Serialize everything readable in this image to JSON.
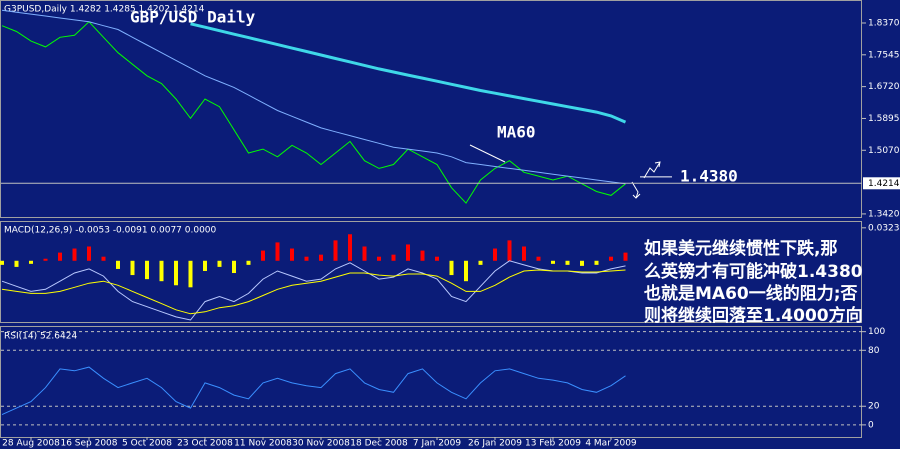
{
  "chart_data": [
    {
      "type": "line",
      "title": "GBP/USD Daily",
      "subtitle": "G3PUSD,Daily  1.4282 1.4285 1.4202 1.4214",
      "ylim": [
        1.334,
        1.894
      ],
      "yticks": [
        {
          "value": 1.837,
          "label": "1.8370"
        },
        1.7545,
        {
          "value": 1.672,
          "label": "1.6720"
        },
        1.5895,
        {
          "value": 1.507,
          "label": "1.5070"
        },
        {
          "value": 1.342,
          "label": "1.3420"
        }
      ],
      "last_price": 1.4214,
      "resistance": {
        "value": 1.438,
        "label": "1.4380"
      },
      "annotations": [
        "MA60",
        "如果美元继续惯性下跌,那",
        "么英镑才有可能冲破1.4380",
        "也就是MA60一线的阻力;否",
        "则将继续回落至1.4000方向"
      ],
      "series": [
        {
          "color": "#00ff00",
          "values": [
            1.83,
            1.815,
            1.79,
            1.775,
            1.8,
            1.805,
            1.84,
            1.8,
            1.76,
            1.73,
            1.7,
            1.68,
            1.64,
            1.59,
            1.64,
            1.62,
            1.56,
            1.5,
            1.51,
            1.49,
            1.52,
            1.5,
            1.47,
            1.5,
            1.53,
            1.48,
            1.46,
            1.47,
            1.51,
            1.49,
            1.47,
            1.41,
            1.37,
            1.43,
            1.46,
            1.48,
            1.45,
            1.44,
            1.43,
            1.44,
            1.42,
            1.4,
            1.39,
            1.42
          ]
        },
        {
          "color": "#7fb0ff",
          "values": [
            1.87,
            1.865,
            1.86,
            1.855,
            1.85,
            1.845,
            1.84,
            1.83,
            1.82,
            1.8,
            1.78,
            1.76,
            1.74,
            1.72,
            1.7,
            1.685,
            1.67,
            1.65,
            1.63,
            1.61,
            1.595,
            1.58,
            1.565,
            1.555,
            1.545,
            1.535,
            1.525,
            1.515,
            1.51,
            1.505,
            1.5,
            1.49,
            1.475,
            1.47,
            1.465,
            1.46,
            1.455,
            1.45,
            1.445,
            1.44,
            1.435,
            1.43,
            1.425,
            1.42
          ]
        },
        {
          "color": "#3fd8e8",
          "values": [
            null,
            null,
            null,
            null,
            null,
            null,
            null,
            null,
            null,
            null,
            null,
            null,
            null,
            1.835,
            1.826,
            1.817,
            1.808,
            1.799,
            1.79,
            1.781,
            1.772,
            1.763,
            1.754,
            1.745,
            1.736,
            1.727,
            1.718,
            1.71,
            1.702,
            1.694,
            1.686,
            1.678,
            1.67,
            1.662,
            1.655,
            1.648,
            1.641,
            1.634,
            1.627,
            1.62,
            1.613,
            1.606,
            1.596,
            1.58
          ]
        }
      ]
    },
    {
      "type": "bar",
      "title": "MACD(12,26,9) -0.0053 -0.0091 0.0077 0.0000",
      "ylim": [
        -0.06,
        0.038
      ],
      "yticks": [
        0.0323
      ],
      "up_color": "#ff0000",
      "down_color": "#ffff00",
      "values": [
        -0.004,
        -0.006,
        -0.003,
        0.002,
        0.008,
        0.012,
        0.014,
        0.004,
        -0.008,
        -0.014,
        -0.018,
        -0.02,
        -0.024,
        -0.026,
        -0.01,
        -0.006,
        -0.012,
        -0.004,
        0.01,
        0.018,
        0.012,
        0.004,
        0.006,
        0.02,
        0.026,
        0.014,
        0.004,
        0.006,
        0.016,
        0.01,
        0.004,
        -0.014,
        -0.02,
        -0.004,
        0.012,
        0.02,
        0.014,
        0.004,
        -0.003,
        -0.004,
        -0.005,
        -0.004,
        0.004,
        0.008
      ],
      "series": [
        {
          "color": "#b8c8ff",
          "values": [
            -0.02,
            -0.025,
            -0.03,
            -0.028,
            -0.02,
            -0.012,
            -0.008,
            -0.015,
            -0.03,
            -0.04,
            -0.045,
            -0.05,
            -0.055,
            -0.058,
            -0.04,
            -0.035,
            -0.04,
            -0.032,
            -0.018,
            -0.01,
            -0.015,
            -0.02,
            -0.018,
            -0.008,
            -0.002,
            -0.01,
            -0.018,
            -0.016,
            -0.008,
            -0.012,
            -0.018,
            -0.035,
            -0.04,
            -0.025,
            -0.01,
            0.0,
            -0.004,
            -0.008,
            -0.01,
            -0.01,
            -0.012,
            -0.012,
            -0.008,
            -0.005
          ]
        },
        {
          "color": "#ffff00",
          "values": [
            -0.028,
            -0.03,
            -0.032,
            -0.032,
            -0.03,
            -0.026,
            -0.022,
            -0.02,
            -0.024,
            -0.03,
            -0.036,
            -0.042,
            -0.048,
            -0.052,
            -0.05,
            -0.046,
            -0.044,
            -0.04,
            -0.034,
            -0.028,
            -0.024,
            -0.022,
            -0.02,
            -0.016,
            -0.012,
            -0.012,
            -0.014,
            -0.015,
            -0.013,
            -0.013,
            -0.015,
            -0.022,
            -0.03,
            -0.03,
            -0.024,
            -0.016,
            -0.01,
            -0.009,
            -0.01,
            -0.01,
            -0.011,
            -0.011,
            -0.01,
            -0.009
          ]
        }
      ]
    },
    {
      "type": "line",
      "title": "RSI(14) 52.6424",
      "categories": [
        null,
        null,
        "28 Aug 2008",
        null,
        null,
        null,
        "16 Sep 2008",
        null,
        null,
        null,
        "5 Oct 2008",
        null,
        null,
        null,
        "23 Oct 2008",
        null,
        null,
        null,
        "11 Nov 2008",
        null,
        null,
        null,
        "30 Nov 2008",
        null,
        null,
        null,
        "18 Dec 2008",
        null,
        null,
        null,
        "7 Jan 2009",
        null,
        null,
        null,
        "26 Jan 2009",
        null,
        null,
        null,
        "13 Feb 2009",
        null,
        null,
        null,
        "4 Mar 2009",
        null
      ],
      "ylim": [
        -13,
        105
      ],
      "yticks": [
        100,
        80,
        20,
        0
      ],
      "series": [
        {
          "color": "#3a8fff",
          "values": [
            11,
            18,
            25,
            40,
            60,
            58,
            62,
            50,
            40,
            45,
            50,
            40,
            25,
            18,
            45,
            40,
            32,
            28,
            45,
            50,
            45,
            42,
            40,
            55,
            60,
            45,
            38,
            35,
            55,
            60,
            45,
            35,
            28,
            45,
            58,
            60,
            55,
            50,
            48,
            45,
            38,
            35,
            42,
            52.6424
          ]
        }
      ]
    }
  ]
}
